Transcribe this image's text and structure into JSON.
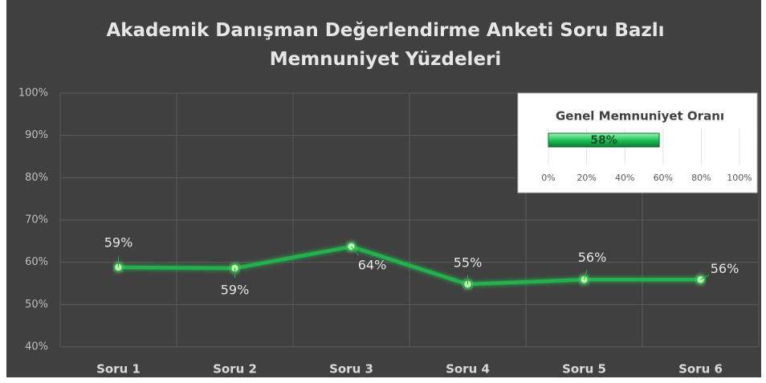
{
  "chart_data": [
    {
      "type": "line",
      "title": "Akademik Danışman Değerlendirme Anketi Soru Bazlı Memnuniyet Yüzdeleri",
      "categories": [
        "Soru 1",
        "Soru 2",
        "Soru 3",
        "Soru 4",
        "Soru 5",
        "Soru 6"
      ],
      "values": [
        58.8,
        58.6,
        63.7,
        54.8,
        55.9,
        55.9
      ],
      "value_labels": [
        "59%",
        "59%",
        "64%",
        "55%",
        "56%",
        "56%"
      ],
      "color": "#22b14c",
      "ylim": [
        40,
        100
      ],
      "yticks": [
        {
          "value": 40,
          "label": "40%"
        },
        {
          "value": 50,
          "label": "50%"
        },
        {
          "value": 60,
          "label": "60%"
        },
        {
          "value": 70,
          "label": "70%"
        },
        {
          "value": 80,
          "label": "80%"
        },
        {
          "value": 90,
          "label": "90%"
        },
        {
          "value": 100,
          "label": "100%"
        }
      ],
      "grid": true
    },
    {
      "type": "hbar",
      "title": "Genel Memnuniyet Oranı",
      "values": [
        58
      ],
      "value_labels": [
        "58%"
      ],
      "color": "#1fc35a",
      "xlim": [
        0,
        100
      ],
      "xticks": [
        {
          "value": 0,
          "label": "0%"
        },
        {
          "value": 20,
          "label": "20%"
        },
        {
          "value": 40,
          "label": "40%"
        },
        {
          "value": 60,
          "label": "60%"
        },
        {
          "value": 80,
          "label": "80%"
        },
        {
          "value": 100,
          "label": "100%"
        }
      ],
      "grid": true
    }
  ]
}
